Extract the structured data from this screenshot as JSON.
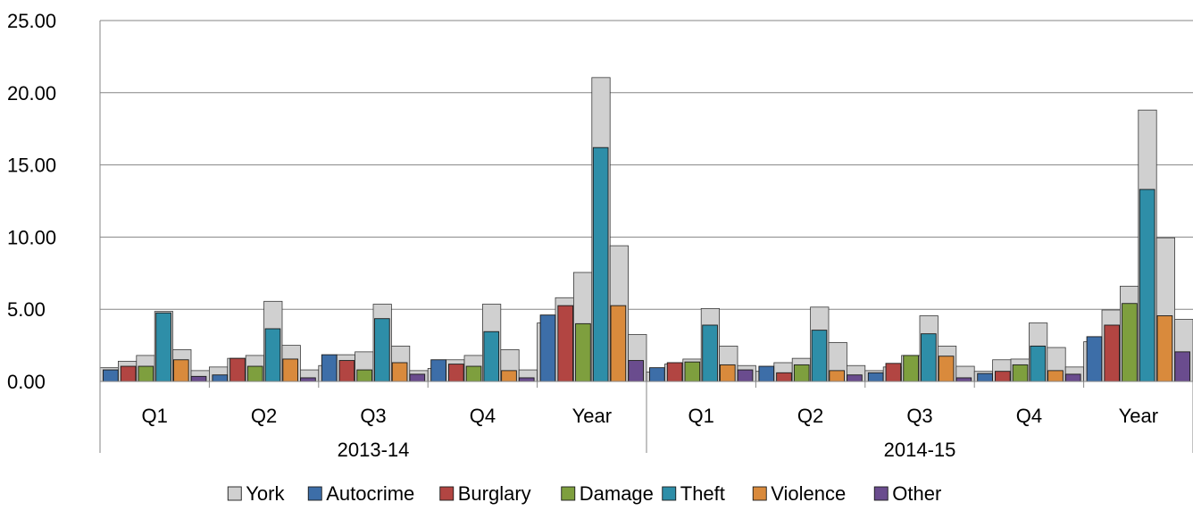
{
  "chart_data": {
    "type": "bar",
    "groups": [
      {
        "label": "2013-14",
        "categories": [
          "Q1",
          "Q2",
          "Q3",
          "Q4",
          "Year"
        ]
      },
      {
        "label": "2014-15",
        "categories": [
          "Q1",
          "Q2",
          "Q3",
          "Q4",
          "Year"
        ]
      }
    ],
    "categories": [
      "Q1",
      "Q2",
      "Q3",
      "Q4",
      "Year",
      "Q1",
      "Q2",
      "Q3",
      "Q4",
      "Year"
    ],
    "ylim": [
      0,
      25
    ],
    "yticks": [
      "0.00",
      "5.00",
      "10.00",
      "15.00",
      "20.00",
      "25.00"
    ],
    "grid": true,
    "legend_position": "bottom",
    "background_series": {
      "name": "York",
      "color": "#d0d0d0",
      "values": [
        [
          0.95,
          1.4,
          1.8,
          4.85,
          2.2,
          0.75
        ],
        [
          1.0,
          1.6,
          1.8,
          5.55,
          2.5,
          0.8
        ],
        [
          1.1,
          1.85,
          2.05,
          5.35,
          2.45,
          0.75
        ],
        [
          0.9,
          1.5,
          1.8,
          5.35,
          2.2,
          0.8
        ],
        [
          4.05,
          5.8,
          7.55,
          21.05,
          9.4,
          3.25
        ],
        [
          0.65,
          1.2,
          1.55,
          5.05,
          2.45,
          1.1
        ],
        [
          0.7,
          1.3,
          1.6,
          5.15,
          2.7,
          1.1
        ],
        [
          0.75,
          1.0,
          1.8,
          4.55,
          2.45,
          1.05
        ],
        [
          0.7,
          1.5,
          1.55,
          4.05,
          2.35,
          1.0
        ],
        [
          2.75,
          4.95,
          6.6,
          18.8,
          9.95,
          4.3
        ]
      ]
    },
    "series": [
      {
        "name": "Autocrime",
        "color": "#3d6ea8",
        "values": [
          0.8,
          0.45,
          1.85,
          1.5,
          4.6,
          0.95,
          1.05,
          0.6,
          0.55,
          3.1
        ]
      },
      {
        "name": "Burglary",
        "color": "#b24542",
        "values": [
          1.05,
          1.6,
          1.45,
          1.2,
          5.25,
          1.3,
          0.6,
          1.25,
          0.7,
          3.9
        ]
      },
      {
        "name": "Damage",
        "color": "#7e9f3e",
        "values": [
          1.05,
          1.05,
          0.8,
          1.05,
          4.0,
          1.35,
          1.15,
          1.8,
          1.15,
          5.4
        ]
      },
      {
        "name": "Theft",
        "color": "#2e8ea8",
        "values": [
          4.75,
          3.65,
          4.35,
          3.45,
          16.2,
          3.9,
          3.55,
          3.3,
          2.45,
          13.3
        ]
      },
      {
        "name": "Violence",
        "color": "#d98a3c",
        "values": [
          1.5,
          1.55,
          1.3,
          0.75,
          5.25,
          1.15,
          0.75,
          1.75,
          0.75,
          4.55
        ]
      },
      {
        "name": "Other",
        "color": "#6a4c8e",
        "values": [
          0.35,
          0.25,
          0.5,
          0.25,
          1.45,
          0.8,
          0.45,
          0.25,
          0.5,
          2.05
        ]
      }
    ],
    "legend": [
      {
        "name": "York",
        "color": "#d0d0d0"
      },
      {
        "name": "Autocrime",
        "color": "#3d6ea8"
      },
      {
        "name": "Burglary",
        "color": "#b24542"
      },
      {
        "name": "Damage",
        "color": "#7e9f3e"
      },
      {
        "name": "Theft",
        "color": "#2e8ea8"
      },
      {
        "name": "Violence",
        "color": "#d98a3c"
      },
      {
        "name": "Other",
        "color": "#6a4c8e"
      }
    ]
  }
}
